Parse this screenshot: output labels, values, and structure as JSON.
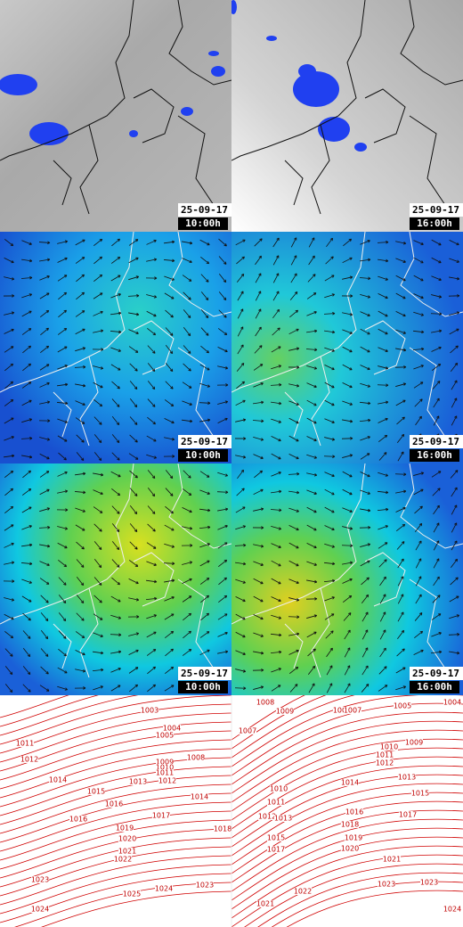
{
  "panels": [
    {
      "date": "25-09-17",
      "time": "10:00h"
    },
    {
      "date": "25-09-17",
      "time": "16:00h"
    },
    {
      "date": "25-09-17",
      "time": "10:00h"
    },
    {
      "date": "25-09-17",
      "time": "16:00h"
    },
    {
      "date": "25-09-17",
      "time": "10:00h"
    },
    {
      "date": "25-09-17",
      "time": "16:00h"
    }
  ],
  "isobars": [
    {
      "labels": [
        "1003",
        "1004",
        "1005",
        "1008",
        "1009",
        "1010",
        "1011",
        "1012",
        "1011",
        "1012",
        "1013",
        "1014",
        "1014",
        "1015",
        "1016",
        "1016",
        "1017",
        "1018",
        "1019",
        "1020",
        "1021",
        "1022",
        "1023",
        "1023",
        "1024",
        "1025",
        "1024"
      ]
    },
    {
      "labels": [
        "1008",
        "1007",
        "1009",
        "1008",
        "1007",
        "1005",
        "1004",
        "1010",
        "1009",
        "1011",
        "1012",
        "1013",
        "1014",
        "1015",
        "1010",
        "1011",
        "1012",
        "1013",
        "1016",
        "1017",
        "1018",
        "1019",
        "1015",
        "1017",
        "1020",
        "1021",
        "1023",
        "1023",
        "1022",
        "1021",
        "1024"
      ]
    }
  ]
}
